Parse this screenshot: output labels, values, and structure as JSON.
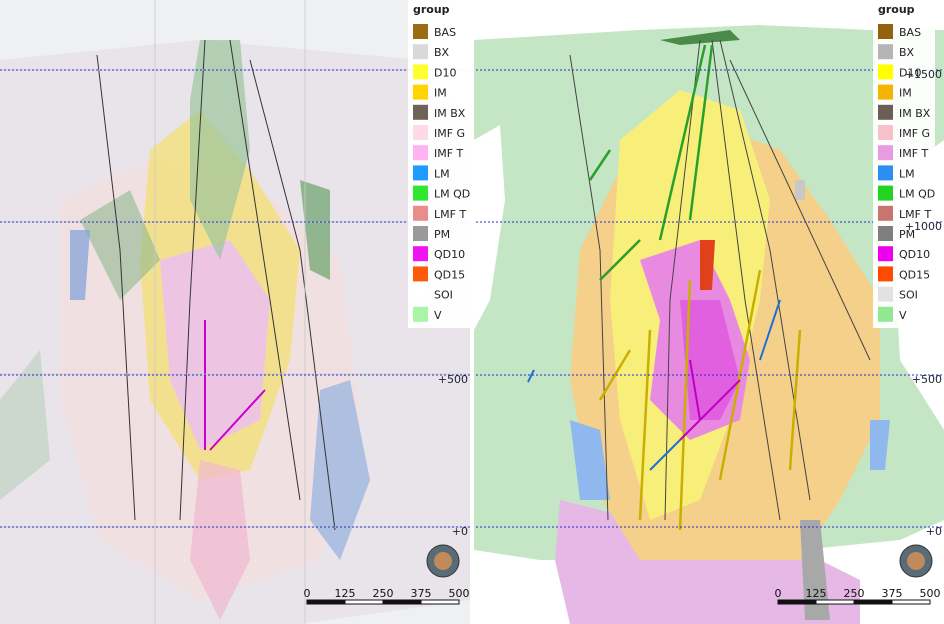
{
  "left_panel": {
    "levels": [
      "+500",
      "+0"
    ],
    "legend": {
      "title": "group",
      "items": [
        {
          "name": "BAS",
          "color": "#9c6b12"
        },
        {
          "name": "BX",
          "color": "#d9d9d9"
        },
        {
          "name": "D10",
          "color": "#ffff2e"
        },
        {
          "name": "IM",
          "color": "#ffd400"
        },
        {
          "name": "IM BX",
          "color": "#6f6256"
        },
        {
          "name": "IMF G",
          "color": "#ffd9e6"
        },
        {
          "name": "IMF T",
          "color": "#ffb3f0"
        },
        {
          "name": "LM",
          "color": "#1e9bff"
        },
        {
          "name": "LM QD",
          "color": "#2ee82e"
        },
        {
          "name": "LMF T",
          "color": "#e88c8c"
        },
        {
          "name": "PM",
          "color": "#9a9a9a"
        },
        {
          "name": "QD10",
          "color": "#f012f0"
        },
        {
          "name": "QD15",
          "color": "#ff5a0a"
        },
        {
          "name": "SOI",
          "color": "#ffffff"
        },
        {
          "name": "V",
          "color": "#a8f5a8"
        }
      ]
    },
    "scale": [
      "0",
      "125",
      "250",
      "375",
      "500"
    ]
  },
  "right_panel": {
    "levels": [
      "+1500",
      "+1000",
      "+500",
      "+0"
    ],
    "legend": {
      "title": "group",
      "items": [
        {
          "name": "BAS",
          "color": "#94620e"
        },
        {
          "name": "BX",
          "color": "#b5b5b5"
        },
        {
          "name": "D10",
          "color": "#ffff00"
        },
        {
          "name": "IM",
          "color": "#f5b400"
        },
        {
          "name": "IM BX",
          "color": "#6b5e55"
        },
        {
          "name": "IMF G",
          "color": "#f8c0c8"
        },
        {
          "name": "IMF T",
          "color": "#e89be0"
        },
        {
          "name": "LM",
          "color": "#2b8ef0"
        },
        {
          "name": "LM QD",
          "color": "#22d422"
        },
        {
          "name": "LMF T",
          "color": "#c87570"
        },
        {
          "name": "PM",
          "color": "#7f7f7f"
        },
        {
          "name": "QD10",
          "color": "#ee00ee"
        },
        {
          "name": "QD15",
          "color": "#ff4a00"
        },
        {
          "name": "SOI",
          "color": "#e2e2e2"
        },
        {
          "name": "V",
          "color": "#90e890"
        }
      ]
    },
    "scale": [
      "0",
      "125",
      "250",
      "375",
      "500"
    ]
  }
}
